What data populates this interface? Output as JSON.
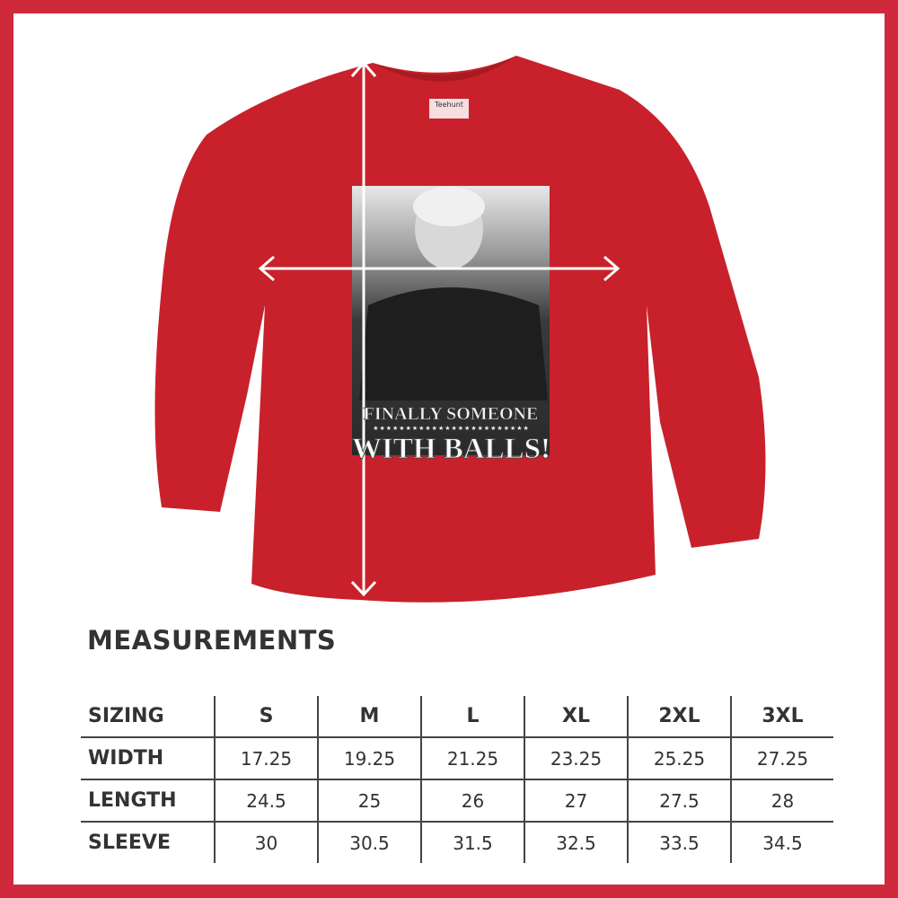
{
  "colors": {
    "border": "#d0293c",
    "shirt": "#c8212b",
    "text": "#333333"
  },
  "shirt": {
    "label_brand": "Teehunt",
    "print_line1": "FINALLY SOMEONE",
    "print_stars": "★★★★★★★★★★★★★★★★★★★★★★★★",
    "print_line2": "WITH BALLS!"
  },
  "measurements": {
    "title": "MEASUREMENTS",
    "header": [
      "SIZING",
      "S",
      "M",
      "L",
      "XL",
      "2XL",
      "3XL"
    ],
    "rows": [
      [
        "WIDTH",
        "17.25",
        "19.25",
        "21.25",
        "23.25",
        "25.25",
        "27.25"
      ],
      [
        "LENGTH",
        "24.5",
        "25",
        "26",
        "27",
        "27.5",
        "28"
      ],
      [
        "SLEEVE",
        "30",
        "30.5",
        "31.5",
        "32.5",
        "33.5",
        "34.5"
      ]
    ]
  }
}
